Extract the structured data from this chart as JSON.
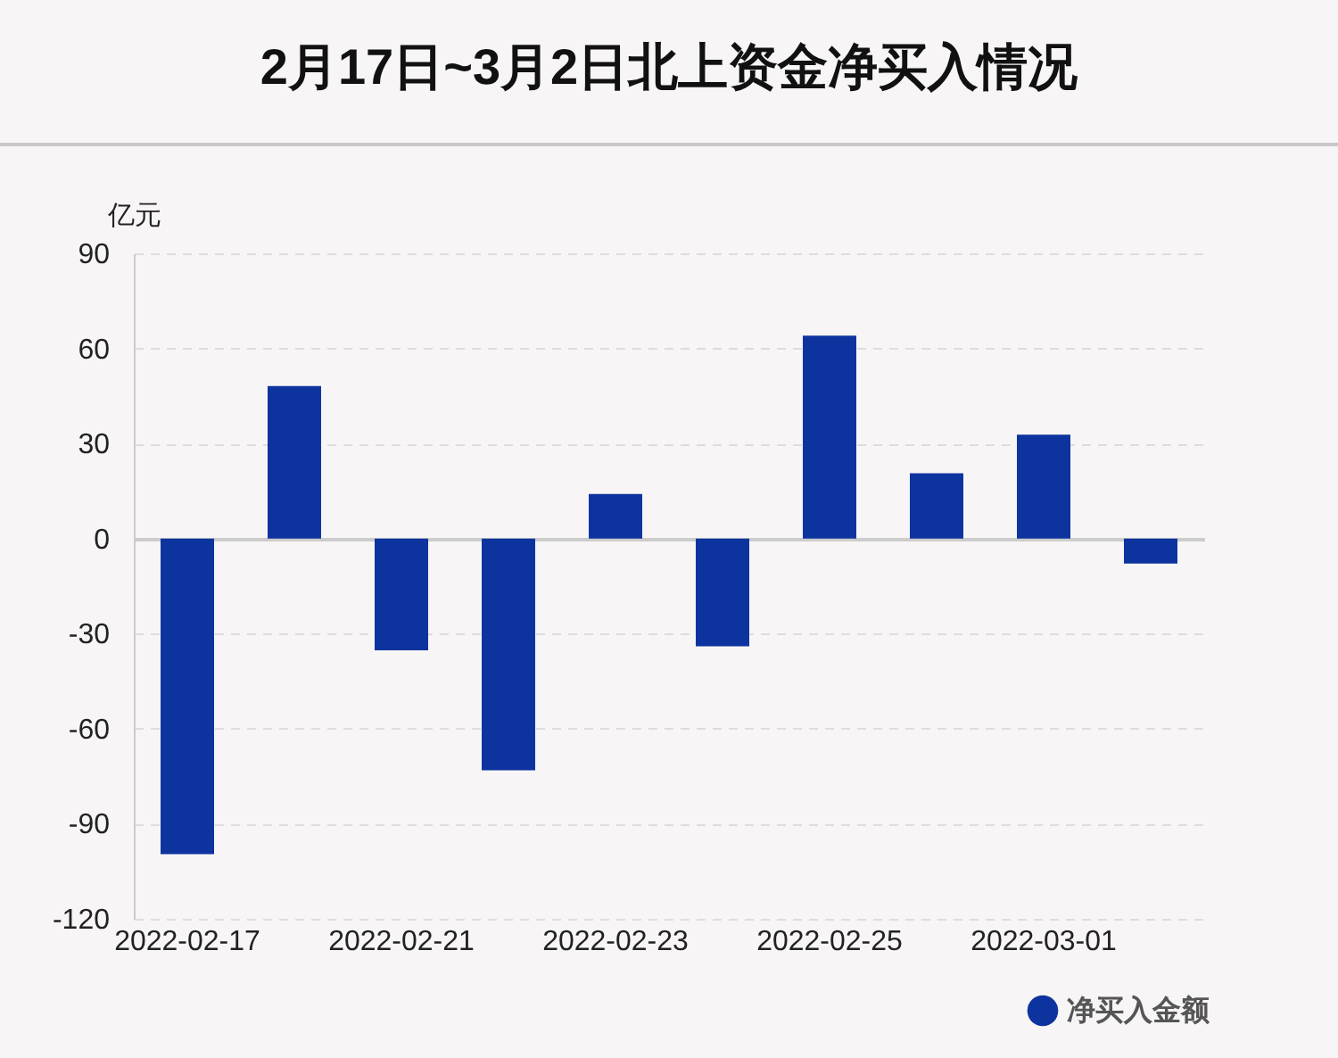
{
  "chart_data": {
    "type": "bar",
    "title": "2月17日~3月2日北上资金净买入情况",
    "ylabel": "亿元",
    "categories": [
      "2022-02-17",
      null,
      "2022-02-21",
      null,
      "2022-02-23",
      null,
      "2022-02-25",
      null,
      "2022-03-01",
      null
    ],
    "series": [
      {
        "name": "净买入金额",
        "color": "#0d349e",
        "values": [
          -99.6,
          48.1,
          -35.3,
          -73.1,
          14.1,
          -34.0,
          64.0,
          20.6,
          32.8,
          -7.9
        ]
      }
    ],
    "ylim": [
      -120,
      90
    ],
    "yticks": [
      -120,
      -90,
      -60,
      -30,
      0,
      30,
      60,
      90
    ],
    "grid": "y",
    "legend": "bottom right"
  }
}
